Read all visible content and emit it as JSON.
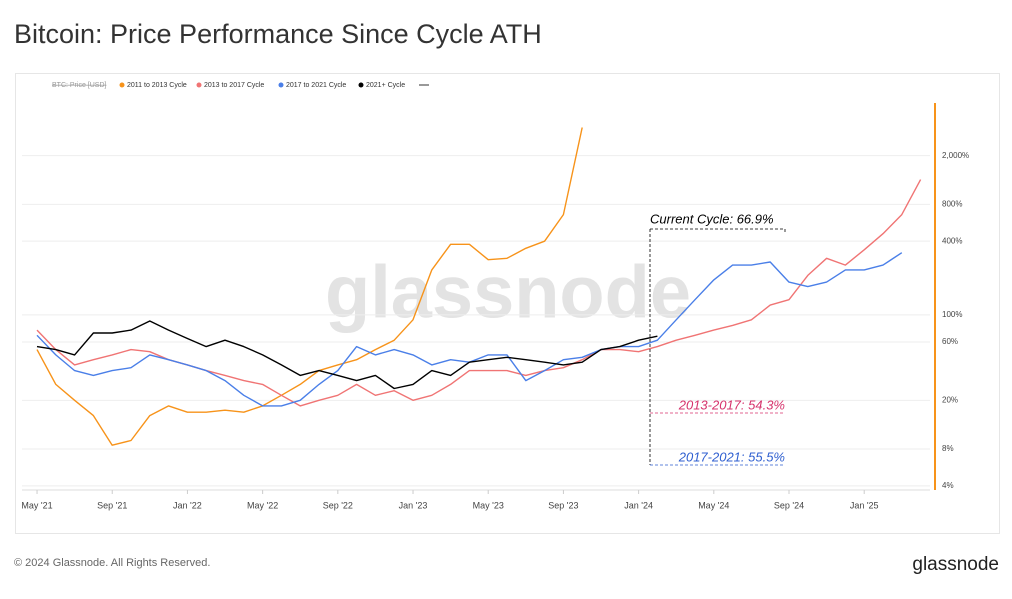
{
  "chart_data": {
    "type": "line",
    "title": "Bitcoin: Price Performance Since Cycle ATH",
    "footer": "© 2024 Glassnode. All Rights Reserved.",
    "brand": "glassnode",
    "watermark": "glassnode",
    "legend_hidden": "BTC: Price [USD]",
    "log_scale": true,
    "grid": true,
    "x": [
      0,
      1,
      2,
      3,
      4,
      5,
      6,
      7,
      8,
      9,
      10,
      11,
      12,
      13,
      14,
      15,
      16,
      17,
      18,
      19,
      20,
      21,
      22,
      23,
      24,
      25,
      26,
      27,
      28,
      29,
      30,
      31,
      32,
      33,
      34,
      35,
      36,
      37,
      38,
      39,
      40,
      41,
      42,
      43,
      44,
      45,
      46,
      47
    ],
    "xlim": [
      -0.8,
      47.5
    ],
    "xticks": [
      {
        "value": 0,
        "label": "May '21"
      },
      {
        "value": 4,
        "label": "Sep '21"
      },
      {
        "value": 8,
        "label": "Jan '22"
      },
      {
        "value": 12,
        "label": "May '22"
      },
      {
        "value": 16,
        "label": "Sep '22"
      },
      {
        "value": 20,
        "label": "Jan '23"
      },
      {
        "value": 24,
        "label": "May '23"
      },
      {
        "value": 28,
        "label": "Sep '23"
      },
      {
        "value": 32,
        "label": "Jan '24"
      },
      {
        "value": 36,
        "label": "May '24"
      },
      {
        "value": 40,
        "label": "Sep '24"
      },
      {
        "value": 44,
        "label": "Jan '25"
      }
    ],
    "ylim": [
      3.7,
      5700
    ],
    "yticks": [
      {
        "value": 4,
        "label": "4%"
      },
      {
        "value": 8,
        "label": "8%"
      },
      {
        "value": 20,
        "label": "20%"
      },
      {
        "value": 60,
        "label": "60%"
      },
      {
        "value": 100,
        "label": "100%"
      },
      {
        "value": 400,
        "label": "400%"
      },
      {
        "value": 800,
        "label": "800%"
      },
      {
        "value": 2000,
        "label": "2,000%"
      }
    ],
    "series": [
      {
        "name": "2011 to 2013 Cycle",
        "color": "#f7931a",
        "values": [
          52,
          27,
          20,
          15,
          8.6,
          9.4,
          15,
          18,
          16,
          16,
          16.6,
          16,
          18,
          22,
          27,
          35,
          39,
          43,
          52,
          62,
          91,
          233,
          377,
          377,
          282,
          290,
          350,
          400,
          660,
          3400,
          null,
          null,
          null,
          null,
          null,
          null,
          null,
          null,
          null,
          null,
          null,
          null,
          null,
          null,
          null,
          null,
          null,
          null
        ]
      },
      {
        "name": "2013 to 2017 Cycle",
        "color": "#f07474",
        "values": [
          75,
          52,
          39,
          43,
          47,
          52,
          50,
          43,
          39,
          35,
          32,
          29,
          27,
          22,
          18,
          20,
          22,
          27,
          22,
          24,
          20,
          22,
          27,
          35,
          35,
          35,
          32,
          35,
          37,
          43,
          52,
          52,
          50,
          55,
          62,
          68,
          75,
          82,
          91,
          120,
          133,
          210,
          290,
          255,
          340,
          460,
          660,
          1274
        ]
      },
      {
        "name": "2017 to 2021 Cycle",
        "color": "#4a7fe8",
        "values": [
          68,
          47,
          35,
          32,
          35,
          37,
          47,
          43,
          39,
          35,
          29,
          22,
          18,
          18,
          20,
          27,
          35,
          55,
          47,
          52,
          47,
          39,
          43,
          41,
          47,
          47,
          29,
          35,
          43,
          45,
          52,
          55,
          55,
          62,
          91,
          133,
          193,
          255,
          255,
          270,
          185,
          170,
          185,
          233,
          233,
          255,
          322,
          null
        ]
      },
      {
        "name": "2021+ Cycle",
        "color": "#000000",
        "values": [
          55,
          52,
          47,
          71,
          71,
          75,
          89,
          75,
          64,
          55,
          62,
          55,
          47,
          39,
          32,
          35,
          32,
          29,
          32,
          25,
          27,
          35,
          32,
          41,
          43,
          45,
          43,
          41,
          39,
          41,
          52,
          55,
          62,
          66.9,
          null,
          null,
          null,
          null,
          null,
          null,
          null,
          null,
          null,
          null,
          null,
          null,
          null,
          null
        ]
      }
    ],
    "annotations": [
      {
        "text": "Current Cycle: 66.9%",
        "value": 66.9
      },
      {
        "text": "2013-2017: 54.3%",
        "value": 54.3
      },
      {
        "text": "2017-2021: 55.5%",
        "value": 55.5
      }
    ]
  }
}
